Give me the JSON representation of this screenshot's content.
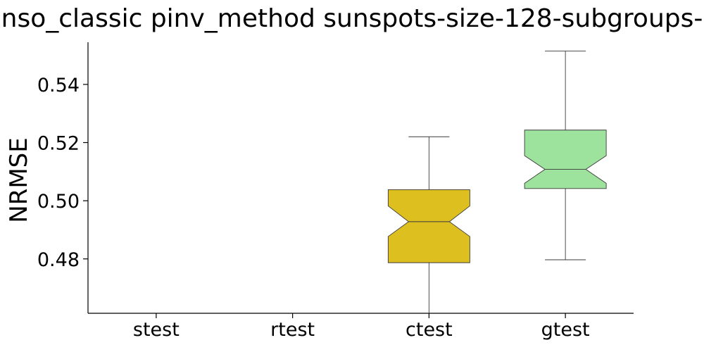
{
  "chart_data": {
    "type": "box",
    "title": "nso_classic pinv_method sunspots-size-128-subgroups-",
    "xlabel": "",
    "ylabel": "NRMSE",
    "categories": [
      "stest",
      "rtest",
      "ctest",
      "gtest"
    ],
    "ylim": [
      0.4613,
      0.5545
    ],
    "yticks": [
      0.48,
      0.5,
      0.52,
      0.54
    ],
    "ytick_labels": [
      "0.48",
      "0.50",
      "0.52",
      "0.54"
    ],
    "notched": true,
    "boxes": [
      {
        "category": "stest",
        "values": null
      },
      {
        "category": "rtest",
        "values": null
      },
      {
        "category": "ctest",
        "color": "#DDBF20",
        "whisker_low": 0.4613,
        "q1": 0.4787,
        "median": 0.4928,
        "q3": 0.5038,
        "whisker_high": 0.522,
        "notch_low": 0.4877,
        "notch_high": 0.4982
      },
      {
        "category": "gtest",
        "color": "#9DE39D",
        "whisker_low": 0.4797,
        "q1": 0.5042,
        "median": 0.5108,
        "q3": 0.5243,
        "whisker_high": 0.5515,
        "notch_low": 0.506,
        "notch_high": 0.5155
      }
    ],
    "grid": false,
    "legend": false
  }
}
